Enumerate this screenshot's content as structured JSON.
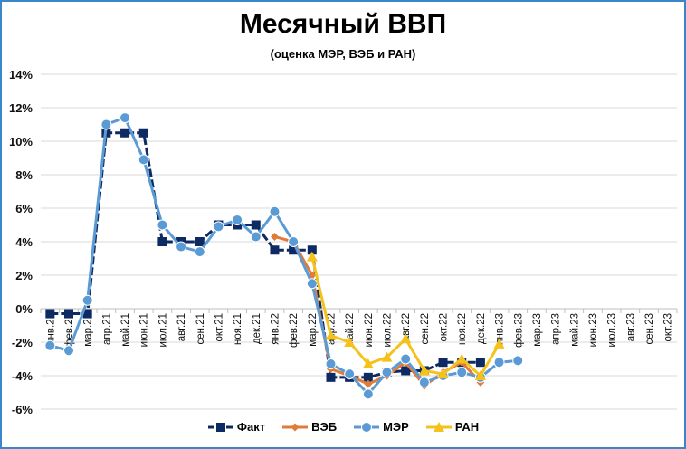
{
  "chart_data": {
    "type": "line",
    "title": "Месячный ВВП",
    "subtitle": "(оценка МЭР, ВЭБ и РАН)",
    "xlabel": "",
    "ylabel": "",
    "ylim": [
      -6,
      14
    ],
    "yticks": [
      "14%",
      "12%",
      "10%",
      "8%",
      "6%",
      "4%",
      "2%",
      "0%",
      "-2%",
      "-4%",
      "-6%"
    ],
    "grid": true,
    "legend_position": "bottom",
    "categories": [
      "янв.21",
      "фев.21",
      "мар.21",
      "апр.21",
      "май.21",
      "июн.21",
      "июл.21",
      "авг.21",
      "сен.21",
      "окт.21",
      "ноя.21",
      "дек.21",
      "янв.22",
      "фев.22",
      "мар.22",
      "апр.22",
      "май.22",
      "июн.22",
      "июл.22",
      "авг.22",
      "сен.22",
      "окт.22",
      "ноя.22",
      "дек.22",
      "янв.23",
      "фев.23",
      "мар.23",
      "апр.23",
      "май.23",
      "июн.23",
      "июл.23",
      "авг.23",
      "сен.23",
      "окт.23"
    ],
    "series": [
      {
        "name": "Факт",
        "color": "#0d2a63",
        "marker": "square",
        "dashed": true,
        "values": [
          -0.3,
          -0.3,
          -0.3,
          10.5,
          10.5,
          10.5,
          4.0,
          4.0,
          4.0,
          5.0,
          5.0,
          5.0,
          3.5,
          3.5,
          3.5,
          -4.1,
          -4.1,
          -4.1,
          -3.8,
          -3.7,
          -3.7,
          -3.2,
          -3.2,
          -3.2,
          null,
          null,
          null,
          null,
          null,
          null,
          null,
          null,
          null,
          null
        ]
      },
      {
        "name": "ВЭБ",
        "color": "#e07b39",
        "marker": "diamond",
        "dashed": false,
        "values": [
          null,
          null,
          null,
          null,
          null,
          null,
          null,
          null,
          null,
          null,
          null,
          null,
          4.3,
          4.0,
          2.0,
          -3.6,
          -4.0,
          -4.5,
          -4.0,
          -3.2,
          -4.6,
          -3.8,
          -3.2,
          -4.4,
          null,
          null,
          null,
          null,
          null,
          null,
          null,
          null,
          null,
          null
        ]
      },
      {
        "name": "МЭР",
        "color": "#5b9bd5",
        "marker": "circle",
        "dashed": false,
        "values": [
          -2.2,
          -2.5,
          0.5,
          11.0,
          11.4,
          8.9,
          5.0,
          3.7,
          3.4,
          4.9,
          5.3,
          4.3,
          5.8,
          4.0,
          1.5,
          -3.3,
          -3.9,
          -5.1,
          -3.8,
          -3.0,
          -4.4,
          -4.0,
          -3.8,
          -4.1,
          -3.2,
          -3.1,
          null,
          null,
          null,
          null,
          null,
          null,
          null,
          null
        ]
      },
      {
        "name": "РАН",
        "color": "#f5c21b",
        "marker": "triangle",
        "dashed": false,
        "values": [
          null,
          null,
          null,
          null,
          null,
          null,
          null,
          null,
          null,
          null,
          null,
          null,
          null,
          null,
          3.1,
          -1.6,
          -2.0,
          -3.3,
          -2.9,
          -1.8,
          -3.7,
          -3.9,
          -3.0,
          -4.0,
          -2.1,
          null,
          null,
          null,
          null,
          null,
          null,
          null,
          null,
          null
        ]
      }
    ]
  }
}
